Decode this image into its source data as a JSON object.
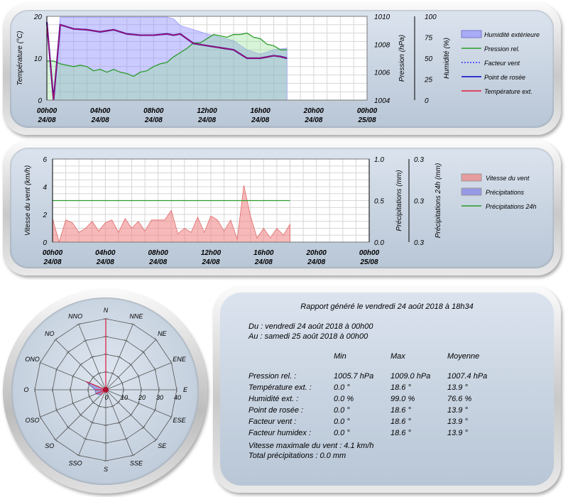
{
  "colors": {
    "humidity": "#8b8bff",
    "pressure": "#2a9a2a",
    "windchill": "#3333ff",
    "dewpoint": "#0000cc",
    "temperature": "#e21b3c",
    "wind": "#f08080",
    "precip": "#7f7fe6",
    "precip24": "#2a9a2a",
    "rose": "#7070cc"
  },
  "chart_data": [
    {
      "type": "line",
      "x_ticks": [
        "00h00",
        "04h00",
        "08h00",
        "12h00",
        "16h00",
        "20h00",
        "00h00"
      ],
      "x_dates": [
        "24/08",
        "24/08",
        "24/08",
        "24/08",
        "24/08",
        "24/08",
        "25/08"
      ],
      "x_range_hours": [
        0,
        24
      ],
      "axes": {
        "temperature": {
          "label": "Température (°C)",
          "range": [
            0,
            20
          ],
          "ticks": [
            "0",
            "10",
            "20"
          ]
        },
        "pressure": {
          "label": "Pression (hPa)",
          "range": [
            1004,
            1010
          ],
          "ticks": [
            "1004",
            "1006",
            "1008",
            "1010"
          ]
        },
        "humidity": {
          "label": "Humidité (%)",
          "range": [
            0,
            100
          ],
          "ticks": [
            "0",
            "25",
            "50",
            "75",
            "100"
          ]
        }
      },
      "legend": [
        "Humidité extérieure",
        "Pression rel.",
        "Facteur vent",
        "Point de rosée",
        "Température ext."
      ],
      "grid": true,
      "series": {
        "humidity": {
          "x": [
            0,
            0.5,
            1,
            2,
            4,
            6,
            8,
            9,
            9.5,
            10,
            11,
            12,
            13,
            14,
            15,
            16,
            17,
            18
          ],
          "y": [
            0,
            0,
            99,
            99,
            99,
            99,
            99,
            99,
            97,
            89,
            84,
            79,
            75,
            71,
            60,
            55,
            60,
            62
          ]
        },
        "pressure": {
          "x": [
            0,
            0.5,
            1,
            1.5,
            2,
            2.5,
            3,
            3.5,
            4,
            4.5,
            5,
            5.5,
            6,
            6.5,
            7,
            7.5,
            8,
            8.5,
            9,
            9.5,
            10,
            10.5,
            11,
            11.5,
            12,
            12.5,
            13,
            13.5,
            14,
            14.5,
            15,
            15.5,
            16,
            16.5,
            17,
            17.5,
            18
          ],
          "y": [
            1006.8,
            1006.8,
            1006.6,
            1006.5,
            1006.4,
            1006.5,
            1006.4,
            1006.1,
            1006.2,
            1006.0,
            1006.2,
            1006.0,
            1005.9,
            1005.7,
            1006.0,
            1006.1,
            1006.4,
            1006.6,
            1006.7,
            1007.1,
            1007.4,
            1007.7,
            1008.1,
            1008.1,
            1008.4,
            1008.7,
            1008.6,
            1008.5,
            1008.7,
            1008.7,
            1008.8,
            1008.5,
            1008.4,
            1008.0,
            1007.9,
            1007.6,
            1007.6
          ]
        },
        "temperature": {
          "x": [
            0,
            0.5,
            1,
            1.5,
            2,
            3,
            4,
            5,
            6,
            7,
            8,
            9,
            9.5,
            10,
            11,
            12,
            13,
            14,
            15,
            16,
            17,
            17.5,
            18
          ],
          "y": [
            18.6,
            0.0,
            18.0,
            17.5,
            17.0,
            16.8,
            16.3,
            16.8,
            15.8,
            15.5,
            15.5,
            15.8,
            15.5,
            15.8,
            13.5,
            13.0,
            12.5,
            12.0,
            10.0,
            10.0,
            10.6,
            10.4,
            10.0
          ]
        }
      }
    },
    {
      "type": "area",
      "x_ticks": [
        "00h00",
        "04h00",
        "08h00",
        "12h00",
        "16h00",
        "20h00",
        "00h00"
      ],
      "x_dates": [
        "24/08",
        "24/08",
        "24/08",
        "24/08",
        "24/08",
        "24/08",
        "25/08"
      ],
      "x_range_hours": [
        0,
        24
      ],
      "axes": {
        "wind": {
          "label": "Vitesse du vent (km/h)",
          "range": [
            0,
            6
          ],
          "ticks": [
            "0",
            "2",
            "4",
            "6"
          ]
        },
        "precip": {
          "label": "Précipitations (mm)",
          "range": [
            0,
            1
          ],
          "ticks": [
            "0.0",
            "0.5",
            "1.0"
          ]
        },
        "precip24": {
          "label": "Précipitations 24h (mm)",
          "ticks": [
            "0.3",
            "0.3",
            "0.3"
          ]
        }
      },
      "legend": [
        "Vitesse du vent",
        "Précipitations",
        "Précipitations 24h"
      ],
      "grid": true,
      "series": {
        "wind": {
          "x": [
            0,
            0.5,
            1,
            1.5,
            2,
            2.5,
            3,
            3.5,
            4,
            4.5,
            5,
            5.5,
            6,
            6.5,
            7,
            7.5,
            8,
            8.5,
            9,
            9.5,
            10,
            10.5,
            11,
            11.5,
            12,
            12.5,
            13,
            13.5,
            14,
            14.5,
            15,
            15.5,
            16,
            16.5,
            17,
            17.5,
            18
          ],
          "y": [
            1.7,
            0,
            1.6,
            1.4,
            0.7,
            1.0,
            1.5,
            0.8,
            1.4,
            1.6,
            0.7,
            1.7,
            1.0,
            1.5,
            0.8,
            1.6,
            1.6,
            1.6,
            2.3,
            0.6,
            1.0,
            0.7,
            1.8,
            0.7,
            1.9,
            1.6,
            0.8,
            1.6,
            0.2,
            4.1,
            1.9,
            0.3,
            1.0,
            0.3,
            1.0,
            0.5,
            1.3
          ]
        },
        "precip24": {
          "value": 0.3,
          "x": [
            0,
            18
          ]
        }
      }
    },
    {
      "type": "polar",
      "directions": [
        "N",
        "NNE",
        "NE",
        "ENE",
        "E",
        "ESE",
        "SE",
        "SSE",
        "S",
        "SSO",
        "SO",
        "OSO",
        "O",
        "ONO",
        "NO",
        "NNO"
      ],
      "radial_ticks": [
        "0",
        "10",
        "20",
        "30",
        "40"
      ],
      "radial_max": 40,
      "values": [
        40,
        0,
        0,
        0,
        0,
        0,
        0,
        0,
        0,
        0,
        4,
        6,
        6,
        12,
        0,
        0
      ]
    }
  ],
  "report": {
    "title": "Rapport généré le vendredi 24 août 2018 à 18h34",
    "from": "Du : vendredi 24 août 2018 à 00h00",
    "to": "Au : samedi 25 août 2018 à 00h00",
    "columns": [
      "Min",
      "Max",
      "Moyenne"
    ],
    "rows": [
      {
        "label": "Pression rel. :",
        "min": "1005.7 hPa",
        "max": "1009.0 hPa",
        "avg": "1007.4 hPa"
      },
      {
        "label": "Température ext. :",
        "min": "0.0 °",
        "max": "18.6 °",
        "avg": "13.9 °"
      },
      {
        "label": "Humidité ext. :",
        "min": "0.0 %",
        "max": "99.0 %",
        "avg": "76.6 %"
      },
      {
        "label": "Point de rosée :",
        "min": "0.0 °",
        "max": "18.6 °",
        "avg": "13.9 °"
      },
      {
        "label": "Facteur vent :",
        "min": "0.0 °",
        "max": "18.6 °",
        "avg": "13.9 °"
      },
      {
        "label": "Facteur humidex :",
        "min": "0.0 °",
        "max": "18.6 °",
        "avg": "13.9 °"
      }
    ],
    "max_wind": "Vitesse maximale du vent : 4.1 km/h",
    "total_precip": "Total précipitations : 0.0 mm"
  }
}
